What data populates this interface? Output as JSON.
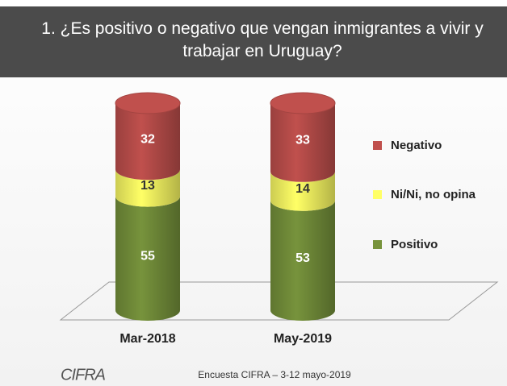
{
  "chart_data": {
    "type": "stacked-cylinder",
    "title": "1.  ¿Es positivo o negativo que vengan inmigrantes a vivir y trabajar en Uruguay?",
    "categories": [
      "Mar-2018",
      "May-2019"
    ],
    "series": [
      {
        "name": "Positivo",
        "color": "#77933c",
        "values": [
          55,
          53
        ]
      },
      {
        "name": "Ni/Ni, no opina",
        "color": "#ffff66",
        "values": [
          13,
          14
        ]
      },
      {
        "name": "Negativo",
        "color": "#c0504d",
        "values": [
          32,
          33
        ]
      }
    ],
    "legend": "right",
    "footnote": "Encuesta CIFRA – 3-12 mayo-2019",
    "logo": "CIFRA"
  }
}
